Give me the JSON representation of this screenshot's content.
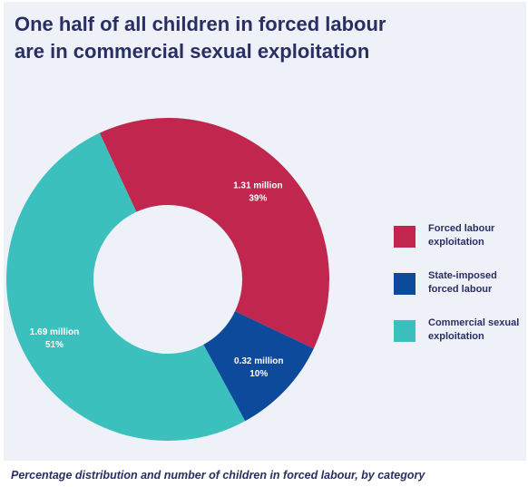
{
  "title": {
    "line1": "One half of all children in forced labour",
    "line2": "are in commercial sexual exploitation"
  },
  "caption": "Percentage distribution and number of children in forced labour, by category",
  "colors": {
    "forced_labour": "#c1264f",
    "state_imposed": "#0d4a9c",
    "commercial_sexual": "#3cc0bd",
    "title_text": "#2a2f63",
    "background": "#eef1f8"
  },
  "chart_data": {
    "type": "pie",
    "variant": "donut",
    "categories": [
      "Forced labour exploitation",
      "State-imposed forced labour",
      "Commercial sexual exploitation"
    ],
    "values": [
      39,
      10,
      51
    ],
    "unit": "%",
    "counts_millions": [
      1.31,
      0.32,
      1.69
    ],
    "data_labels": [
      {
        "count": "1.31 million",
        "percent": "39%"
      },
      {
        "count": "0.32 million",
        "percent": "10%"
      },
      {
        "count": "1.69 million",
        "percent": "51%"
      }
    ],
    "legend_placement": "right"
  },
  "legend": [
    {
      "line1": "Forced labour",
      "line2": "exploitation",
      "color": "#c1264f"
    },
    {
      "line1": "State-imposed",
      "line2": "forced labour",
      "color": "#0d4a9c"
    },
    {
      "line1": "Commercial sexual",
      "line2": "exploitation",
      "color": "#3cc0bd"
    }
  ]
}
